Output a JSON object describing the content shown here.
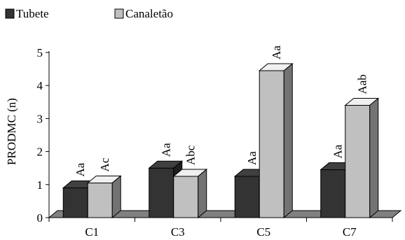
{
  "chart_data": {
    "type": "bar",
    "categories": [
      "C1",
      "C3",
      "C5",
      "C7"
    ],
    "series": [
      {
        "name": "Tubete",
        "values": [
          0.9,
          1.5,
          1.25,
          1.45
        ],
        "labels": [
          "Aa",
          "Aa",
          "Aa",
          "Aa"
        ],
        "color": "#333333"
      },
      {
        "name": "Canaletão",
        "values": [
          1.05,
          1.25,
          4.45,
          3.4
        ],
        "labels": [
          "Ac",
          "Abc",
          "Aa",
          "Aab"
        ],
        "color": "#c0c0c0"
      }
    ],
    "ylabel": "PRODMC (n)",
    "xlabel": "",
    "ylim": [
      0,
      5
    ],
    "yticks": [
      0,
      1,
      2,
      3,
      4,
      5
    ],
    "grid": false,
    "legend_position": "top-left",
    "style": "3d"
  }
}
